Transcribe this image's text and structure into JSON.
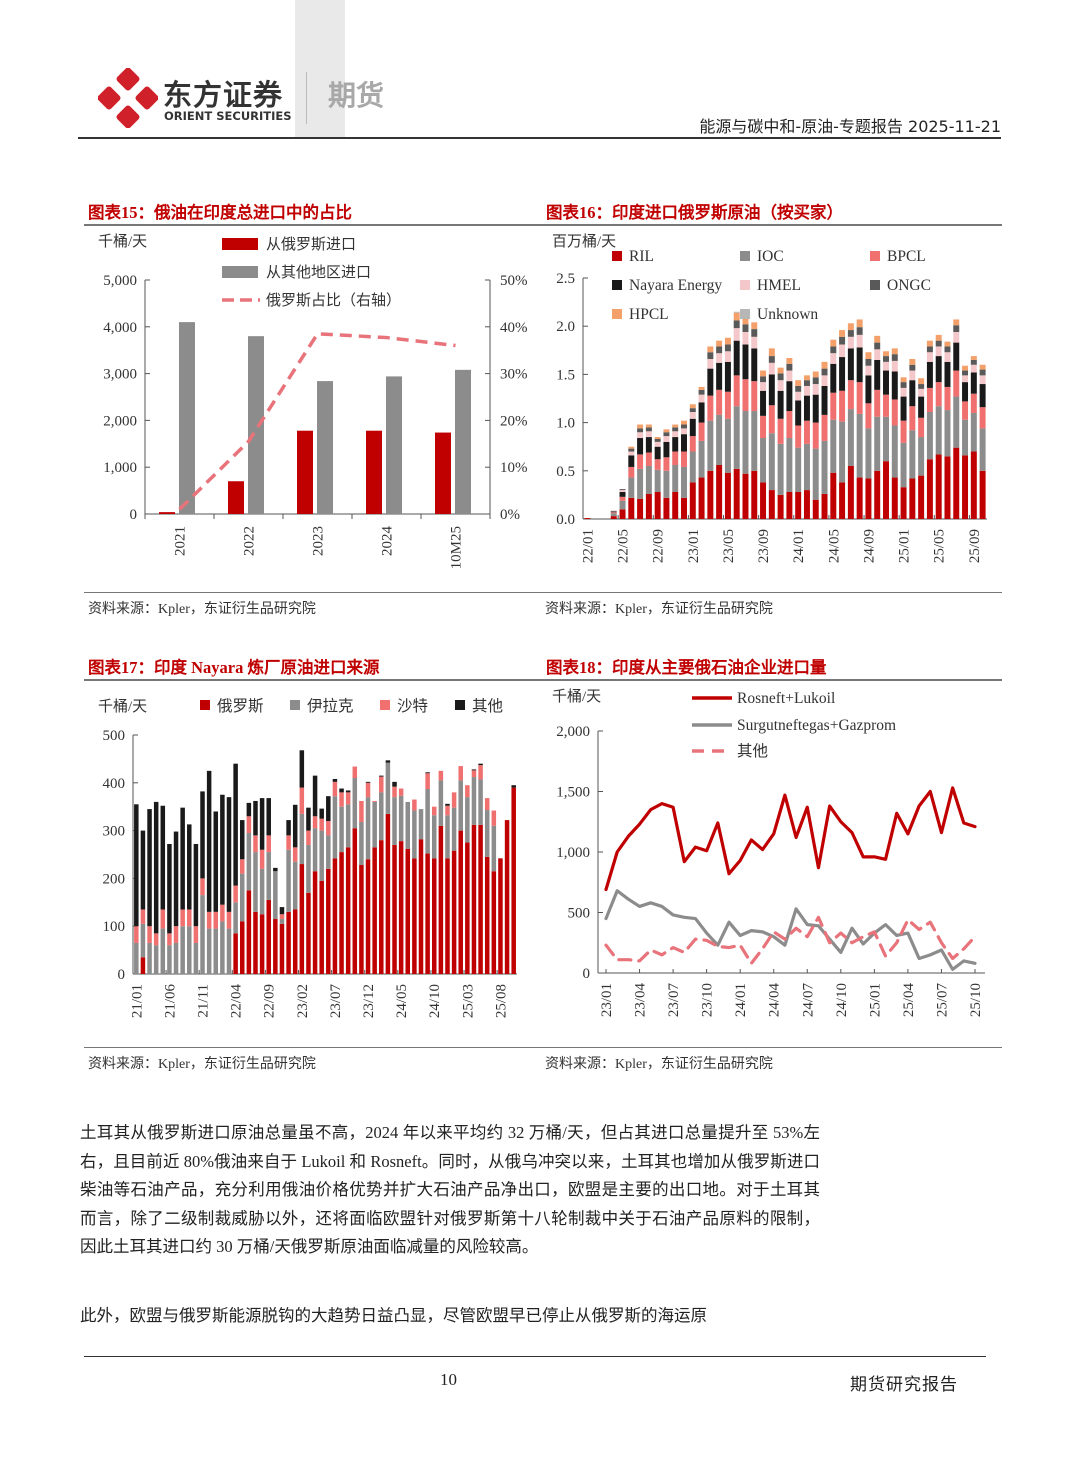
{
  "header": {
    "brand_cn": "东方证券",
    "brand_en": "ORIENT SECURITIES",
    "division": "期货",
    "doc_title": "能源与碳中和-原油-专题报告 2025-11-21"
  },
  "colors": {
    "accent": "#c00000",
    "gray": "#8c8c8c",
    "pink": "#f07070",
    "black": "#1a1a1a",
    "light_pink": "#f4c7ca",
    "dark_gray": "#595959",
    "orange": "#f4a06a",
    "light_gray": "#b7b7b7"
  },
  "chart_data": [
    {
      "type": "bar",
      "title": "图表15：俄油在印度总进口中的占比",
      "ylabel": "千桶/天",
      "ylim": [
        0,
        5000
      ],
      "yticks": [
        "0",
        "1,000",
        "2,000",
        "3,000",
        "4,000",
        "5,000"
      ],
      "y2lim": [
        0,
        50
      ],
      "y2ticks": [
        "0%",
        "10%",
        "20%",
        "30%",
        "40%",
        "50%"
      ],
      "categories": [
        "2021",
        "2022",
        "2023",
        "2024",
        "10M25"
      ],
      "series": [
        {
          "name": "从俄罗斯进口",
          "kind": "bar",
          "color": "#c00000",
          "values": [
            40,
            700,
            1780,
            1780,
            1740
          ]
        },
        {
          "name": "从其他地区进口",
          "kind": "bar",
          "color": "#8c8c8c",
          "values": [
            4100,
            3800,
            2840,
            2940,
            3080
          ]
        },
        {
          "name": "俄罗斯占比（右轴）",
          "kind": "dashed-line",
          "axis": "right",
          "color": "#e8737a",
          "values": [
            1,
            15.5,
            38.5,
            37.7,
            36
          ]
        }
      ],
      "source": "资料来源：Kpler，东证衍生品研究院"
    },
    {
      "type": "bar",
      "stacked": true,
      "title": "图表16：印度进口俄罗斯原油（按买家）",
      "ylabel": "百万桶/天",
      "ylim": [
        0,
        2.5
      ],
      "yticks": [
        "0.0",
        "0.5",
        "1.0",
        "1.5",
        "2.0",
        "2.5"
      ],
      "xtick_labels": [
        "22/01",
        "22/05",
        "22/09",
        "23/01",
        "23/05",
        "23/09",
        "24/01",
        "24/05",
        "24/09",
        "25/01",
        "25/05",
        "25/09"
      ],
      "xtick_every": 4,
      "series": [
        {
          "name": "RIL",
          "color": "#c00000",
          "values": [
            0.01,
            0,
            0,
            0.03,
            0.1,
            0.22,
            0.21,
            0.26,
            0.28,
            0.22,
            0.28,
            0.22,
            0.38,
            0.43,
            0.5,
            0.56,
            0.48,
            0.52,
            0.47,
            0.5,
            0.38,
            0.3,
            0.25,
            0.28,
            0.28,
            0.3,
            0.2,
            0.26,
            0.48,
            0.38,
            0.55,
            0.43,
            0.42,
            0.5,
            0.6,
            0.43,
            0.33,
            0.42,
            0.45,
            0.62,
            0.67,
            0.65,
            0.74,
            0.66,
            0.7,
            0.5
          ]
        },
        {
          "name": "IOC",
          "color": "#8c8c8c",
          "values": [
            0,
            0,
            0,
            0.03,
            0.09,
            0.21,
            0.31,
            0.29,
            0.23,
            0.28,
            0.28,
            0.32,
            0.32,
            0.38,
            0.52,
            0.52,
            0.56,
            0.65,
            0.65,
            0.62,
            0.46,
            0.59,
            0.53,
            0.56,
            0.46,
            0.48,
            0.53,
            0.55,
            0.55,
            0.63,
            0.59,
            0.66,
            0.52,
            0.56,
            0.46,
            0.54,
            0.46,
            0.5,
            0.4,
            0.49,
            0.5,
            0.48,
            0.53,
            0.37,
            0.4,
            0.44
          ]
        },
        {
          "name": "BPCL",
          "color": "#f07070",
          "values": [
            0,
            0,
            0,
            0.01,
            0.04,
            0.11,
            0.15,
            0.14,
            0.11,
            0.14,
            0.14,
            0.16,
            0.16,
            0.19,
            0.26,
            0.26,
            0.28,
            0.32,
            0.33,
            0.31,
            0.23,
            0.29,
            0.26,
            0.28,
            0.23,
            0.24,
            0.27,
            0.27,
            0.28,
            0.32,
            0.3,
            0.33,
            0.26,
            0.28,
            0.23,
            0.27,
            0.23,
            0.25,
            0.2,
            0.25,
            0.25,
            0.24,
            0.27,
            0.19,
            0.2,
            0.22
          ]
        },
        {
          "name": "Nayara Energy",
          "color": "#1a1a1a",
          "values": [
            0,
            0,
            0,
            0.01,
            0.05,
            0.12,
            0.17,
            0.16,
            0.13,
            0.16,
            0.15,
            0.18,
            0.18,
            0.21,
            0.28,
            0.28,
            0.31,
            0.36,
            0.36,
            0.34,
            0.26,
            0.32,
            0.29,
            0.31,
            0.26,
            0.26,
            0.29,
            0.3,
            0.3,
            0.35,
            0.33,
            0.36,
            0.29,
            0.31,
            0.25,
            0.29,
            0.25,
            0.27,
            0.22,
            0.27,
            0.27,
            0.26,
            0.29,
            0.2,
            0.22,
            0.24
          ]
        },
        {
          "name": "HMEL",
          "color": "#f4c7ca",
          "values": [
            0,
            0,
            0,
            0.01,
            0.02,
            0.04,
            0.06,
            0.06,
            0.05,
            0.06,
            0.06,
            0.06,
            0.07,
            0.08,
            0.1,
            0.1,
            0.11,
            0.13,
            0.13,
            0.12,
            0.09,
            0.12,
            0.11,
            0.11,
            0.09,
            0.1,
            0.11,
            0.11,
            0.11,
            0.13,
            0.12,
            0.13,
            0.1,
            0.11,
            0.09,
            0.11,
            0.09,
            0.1,
            0.08,
            0.1,
            0.1,
            0.1,
            0.11,
            0.07,
            0.08,
            0.09
          ]
        },
        {
          "name": "ONGC",
          "color": "#595959",
          "values": [
            0,
            0,
            0,
            0,
            0.01,
            0.03,
            0.04,
            0.04,
            0.03,
            0.04,
            0.04,
            0.04,
            0.04,
            0.05,
            0.07,
            0.07,
            0.07,
            0.08,
            0.08,
            0.08,
            0.06,
            0.07,
            0.07,
            0.07,
            0.06,
            0.06,
            0.07,
            0.07,
            0.07,
            0.08,
            0.07,
            0.08,
            0.07,
            0.07,
            0.06,
            0.07,
            0.06,
            0.06,
            0.05,
            0.06,
            0.06,
            0.06,
            0.07,
            0.05,
            0.05,
            0.06
          ]
        },
        {
          "name": "HPCL",
          "color": "#f4a06a",
          "values": [
            0,
            0,
            0,
            0,
            0,
            0.02,
            0.04,
            0.03,
            0.02,
            0.03,
            0.03,
            0.04,
            0.04,
            0.03,
            0.06,
            0.06,
            0.07,
            0.08,
            0.08,
            0.07,
            0.06,
            0.08,
            0.06,
            0.06,
            0.06,
            0.05,
            0.06,
            0.07,
            0.07,
            0.07,
            0.07,
            0.08,
            0.07,
            0.07,
            0.05,
            0.06,
            0.05,
            0.06,
            0.06,
            0.06,
            0.06,
            0.05,
            0.06,
            0.05,
            0.04,
            0.05
          ]
        },
        {
          "name": "Unknown",
          "color": "#b7b7b7",
          "values": [
            0,
            0,
            0,
            0,
            0,
            0,
            0,
            0,
            0,
            0,
            0,
            0,
            0,
            0,
            0,
            0,
            0,
            0.01,
            0.01,
            0,
            0,
            0,
            0,
            0,
            0,
            0,
            0,
            0,
            0,
            0,
            0,
            0,
            0,
            0,
            0,
            0,
            0,
            0,
            0,
            0,
            0,
            0,
            0,
            0,
            0,
            0
          ]
        }
      ],
      "source": "资料来源：Kpler，东证衍生品研究院"
    },
    {
      "type": "bar",
      "stacked": true,
      "title": "图表17：印度 Nayara 炼厂原油进口来源",
      "ylabel": "千桶/天",
      "ylim": [
        0,
        500
      ],
      "yticks": [
        "0",
        "100",
        "200",
        "300",
        "400",
        "500"
      ],
      "xtick_labels": [
        "21/01",
        "21/06",
        "21/11",
        "22/04",
        "22/09",
        "23/02",
        "23/07",
        "23/12",
        "24/05",
        "24/10",
        "25/03",
        "25/08"
      ],
      "xtick_every": 5,
      "series": [
        {
          "name": "俄罗斯",
          "color": "#c00000",
          "values": [
            0,
            35,
            0,
            0,
            0,
            0,
            0,
            0,
            0,
            0,
            0,
            0,
            0,
            0,
            0,
            85,
            110,
            175,
            130,
            125,
            155,
            115,
            105,
            130,
            135,
            230,
            170,
            215,
            195,
            220,
            242,
            255,
            265,
            305,
            228,
            240,
            265,
            280,
            335,
            270,
            278,
            262,
            242,
            282,
            252,
            242,
            310,
            242,
            258,
            300,
            275,
            312,
            312,
            245,
            215,
            242,
            322,
            390
          ]
        },
        {
          "name": "伊拉克",
          "color": "#8c8c8c",
          "values": [
            65,
            70,
            65,
            60,
            95,
            60,
            65,
            100,
            100,
            65,
            165,
            95,
            95,
            110,
            95,
            65,
            100,
            120,
            125,
            95,
            100,
            100,
            10,
            130,
            100,
            105,
            100,
            90,
            105,
            70,
            130,
            95,
            90,
            105,
            90,
            130,
            95,
            100,
            107,
            100,
            95,
            98,
            100,
            63,
            135,
            90,
            95,
            90,
            90,
            105,
            95,
            100,
            95,
            98,
            95,
            0,
            0,
            0
          ]
        },
        {
          "name": "沙特",
          "color": "#f07070",
          "values": [
            35,
            30,
            35,
            25,
            40,
            25,
            35,
            35,
            35,
            35,
            35,
            35,
            35,
            35,
            35,
            35,
            30,
            35,
            35,
            40,
            35,
            0,
            10,
            30,
            30,
            55,
            30,
            25,
            25,
            30,
            30,
            30,
            25,
            24,
            44,
            30,
            2,
            33,
            0,
            22,
            15,
            0,
            23,
            0,
            33,
            18,
            20,
            20,
            32,
            30,
            25,
            14,
            30,
            25,
            32,
            0,
            0,
            0
          ]
        },
        {
          "name": "其他",
          "color": "#1a1a1a",
          "values": [
            255,
            165,
            245,
            275,
            217,
            187,
            198,
            213,
            178,
            172,
            182,
            295,
            210,
            230,
            240,
            255,
            82,
            28,
            72,
            108,
            78,
            7,
            15,
            32,
            89,
            78,
            48,
            85,
            21,
            52,
            6,
            8,
            4,
            0,
            0,
            2,
            0,
            2,
            5,
            10,
            0,
            0,
            0,
            0,
            2,
            0,
            0,
            4,
            0,
            0,
            0,
            2,
            3,
            0,
            0,
            0,
            0,
            5
          ]
        }
      ],
      "source": "资料来源：Kpler，东证衍生品研究院"
    },
    {
      "type": "line",
      "title": "图表18：印度从主要俄石油企业进口量",
      "ylabel": "千桶/天",
      "ylim": [
        0,
        2000
      ],
      "yticks": [
        "0",
        "500",
        "1,000",
        "1,500",
        "2,000"
      ],
      "xtick_labels": [
        "23/01",
        "23/04",
        "23/07",
        "23/10",
        "24/01",
        "24/04",
        "24/07",
        "24/10",
        "25/01",
        "25/04",
        "25/07",
        "25/10"
      ],
      "xtick_every": 3,
      "series": [
        {
          "name": "Rosneft+Lukoil",
          "style": "solid",
          "color": "#c00000",
          "values": [
            690,
            1000,
            1130,
            1230,
            1350,
            1400,
            1370,
            920,
            1040,
            1010,
            1240,
            820,
            930,
            1100,
            1020,
            1150,
            1470,
            1120,
            1370,
            870,
            1380,
            1250,
            1160,
            960,
            960,
            940,
            1320,
            1150,
            1380,
            1500,
            1160,
            1530,
            1240,
            1210
          ]
        },
        {
          "name": "Surgutneftegas+Gazprom",
          "style": "solid",
          "color": "#8c8c8c",
          "values": [
            450,
            680,
            610,
            550,
            580,
            550,
            480,
            460,
            450,
            330,
            230,
            420,
            310,
            350,
            340,
            300,
            230,
            530,
            400,
            390,
            280,
            170,
            370,
            240,
            330,
            400,
            310,
            330,
            120,
            150,
            190,
            30,
            100,
            80
          ]
        },
        {
          "name": "其他",
          "style": "dashed",
          "color": "#e8737a",
          "values": [
            230,
            110,
            110,
            100,
            190,
            150,
            210,
            170,
            280,
            270,
            220,
            210,
            230,
            80,
            200,
            340,
            280,
            370,
            300,
            460,
            250,
            330,
            250,
            300,
            340,
            140,
            250,
            440,
            360,
            420,
            250,
            120,
            200,
            300
          ]
        }
      ],
      "source": "资料来源：Kpler，东证衍生品研究院"
    }
  ],
  "body": {
    "paragraphs": [
      "土耳其从俄罗斯进口原油总量虽不高，2024 年以来平均约 32 万桶/天，但占其进口总量提升至 53%左右，且目前近 80%俄油来自于 Lukoil 和 Rosneft。同时，从俄乌冲突以来，土耳其也增加从俄罗斯进口柴油等石油产品，充分利用俄油价格优势并扩大石油产品净出口，欧盟是主要的出口地。对于土耳其而言，除了二级制裁威胁以外，还将面临欧盟针对俄罗斯第十八轮制裁中关于石油产品原料的限制，因此土耳其进口约 30 万桶/天俄罗斯原油面临减量的风险较高。",
      "此外，欧盟与俄罗斯能源脱钩的大趋势日益凸显，尽管欧盟早已停止从俄罗斯的海运原"
    ]
  },
  "footer": {
    "page_number": "10",
    "report_type": "期货研究报告"
  }
}
